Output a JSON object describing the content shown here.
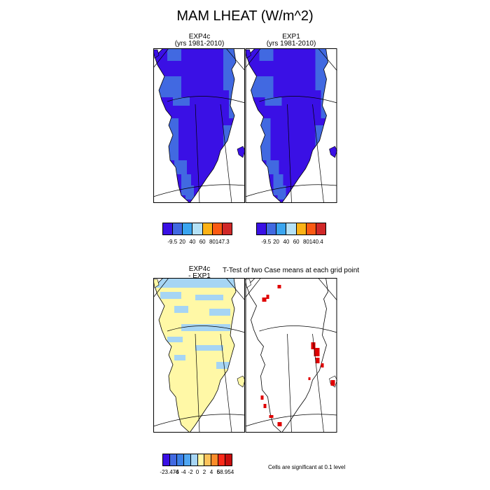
{
  "title": "MAM LHEAT (W/m^2)",
  "panels": {
    "exp4c": {
      "name": "EXP4c",
      "years": "(yrs 1981-2010)"
    },
    "exp1": {
      "name": "EXP1",
      "years": "(yrs 1981-2010)"
    },
    "diff": {
      "name": "EXP4c",
      "subtitle": "- EXP1"
    },
    "ttest": {
      "title": "T-Test of two Case means at each grid point",
      "note": "Cells are significant at 0.1 level"
    }
  },
  "colorbars": {
    "exp4c": {
      "colors": [
        "#3a10e5",
        "#4169e1",
        "#3aa5f0",
        "#b4e1f6",
        "#fbb216",
        "#fb5a13",
        "#d02828"
      ],
      "labels": [
        "-9.5",
        "20",
        "40",
        "60",
        "80",
        "147.3"
      ]
    },
    "exp1": {
      "colors": [
        "#3a10e5",
        "#4169e1",
        "#3aa5f0",
        "#b4e1f6",
        "#fbb216",
        "#fb5a13",
        "#d02828"
      ],
      "labels": [
        "-9.5",
        "20",
        "40",
        "60",
        "80",
        "140.4"
      ]
    },
    "diff": {
      "colors": [
        "#3a10e5",
        "#4169e1",
        "#3a7fe6",
        "#4fa6f2",
        "#a6d5f4",
        "#fff8a6",
        "#fbc25a",
        "#fb8c2a",
        "#fb2a1a",
        "#c80d0d"
      ],
      "labels": [
        "-23.474",
        "-6",
        "-4",
        "-2",
        "0",
        "2",
        "4",
        "6",
        "58.954"
      ]
    }
  },
  "legend_colors": {
    "ice_low": "#3a10e5",
    "ice_mid": "#4169e1",
    "diff_base": "#fff8a6",
    "diff_low": "#a6d5f4",
    "signif": "#e00000"
  }
}
